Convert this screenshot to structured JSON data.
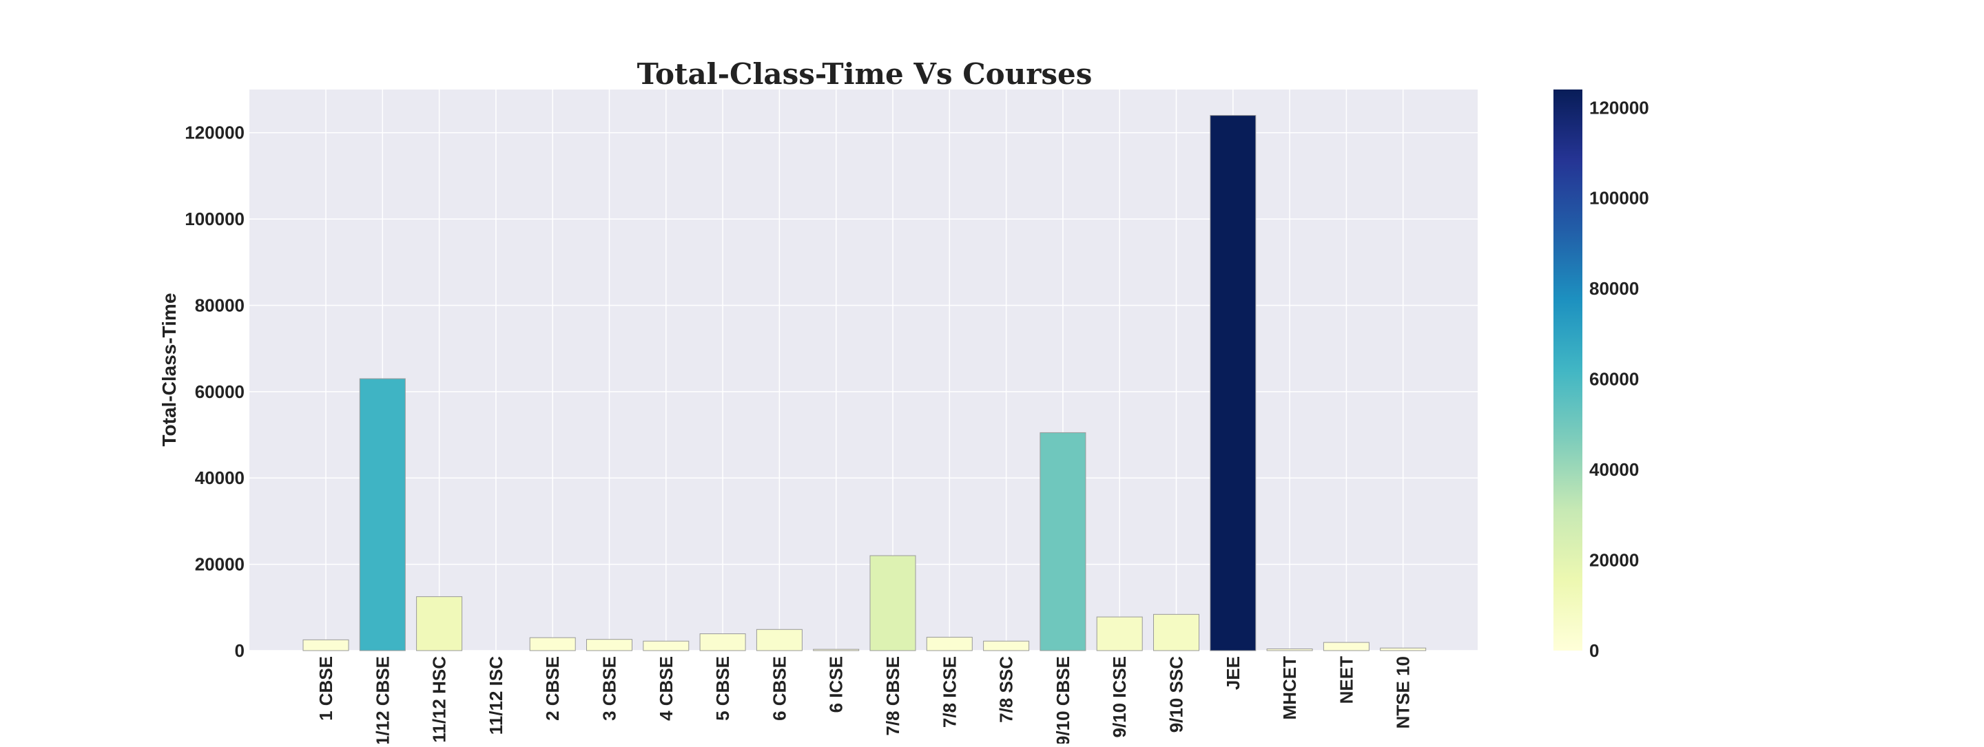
{
  "chart_data": {
    "type": "bar",
    "title": "Total-Class-Time Vs Courses",
    "xlabel": "",
    "ylabel": "Total-Class-Time",
    "categories": [
      "1 CBSE",
      "11/12 CBSE",
      "11/12 HSC",
      "11/12 ISC",
      "2 CBSE",
      "3 CBSE",
      "4 CBSE",
      "5 CBSE",
      "6 CBSE",
      "6 ICSE",
      "7/8 CBSE",
      "7/8 ICSE",
      "7/8 SSC",
      "9/10 CBSE",
      "9/10 ICSE",
      "9/10 SSC",
      "JEE",
      "MHCET",
      "NEET",
      "NTSE 10"
    ],
    "values": [
      2500,
      63000,
      12500,
      0,
      3000,
      2600,
      2200,
      3900,
      4900,
      300,
      22000,
      3100,
      2200,
      50500,
      7800,
      8400,
      124000,
      400,
      1900,
      600
    ],
    "ylim": [
      0,
      130000
    ],
    "yticks": [
      0,
      20000,
      40000,
      60000,
      80000,
      100000,
      120000
    ],
    "grid": true,
    "colorbar": {
      "range": [
        0,
        124000
      ],
      "ticks": [
        0,
        20000,
        40000,
        60000,
        80000,
        100000,
        120000
      ],
      "colormap": "YlGnBu",
      "stops": [
        "#ffffd9",
        "#edf8b1",
        "#c7e9b4",
        "#7fcdbb",
        "#41b6c4",
        "#1d91c0",
        "#225ea8",
        "#253494",
        "#081d58"
      ]
    },
    "plot_background": "#eaeaf2",
    "gridline_color": "#ffffff"
  }
}
